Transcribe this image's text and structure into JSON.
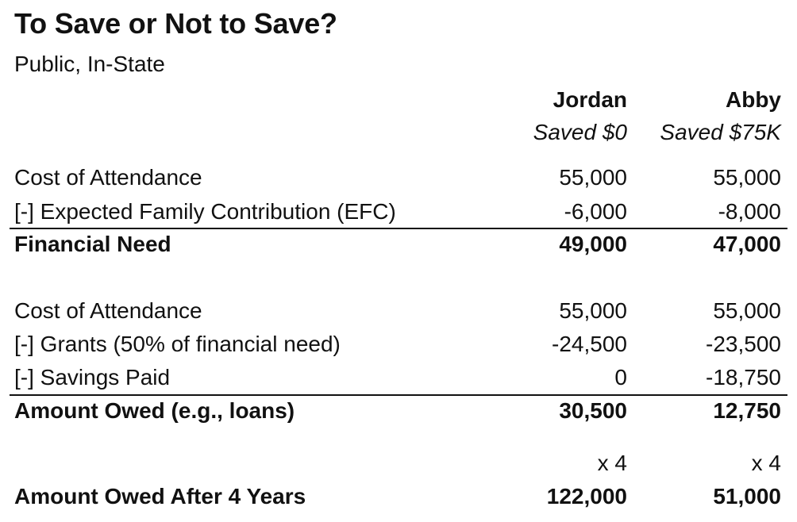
{
  "title": "To Save or Not to Save?",
  "subtitle": "Public, In-State",
  "columns": {
    "jordan": {
      "name": "Jordan",
      "note": "Saved $0"
    },
    "abby": {
      "name": "Abby",
      "note": "Saved $75K"
    }
  },
  "section1": {
    "rows": [
      {
        "label": "Cost of Attendance",
        "jordan": "55,000",
        "abby": "55,000"
      },
      {
        "label": "[-] Expected Family Contribution (EFC)",
        "jordan": "-6,000",
        "abby": "-8,000"
      }
    ],
    "total": {
      "label": "Financial Need",
      "jordan": "49,000",
      "abby": "47,000"
    }
  },
  "section2": {
    "rows": [
      {
        "label": "Cost of Attendance",
        "jordan": "55,000",
        "abby": "55,000"
      },
      {
        "label": "[-] Grants (50% of financial need)",
        "jordan": "-24,500",
        "abby": "-23,500"
      },
      {
        "label": "[-] Savings Paid",
        "jordan": "0",
        "abby": "-18,750"
      }
    ],
    "total": {
      "label": "Amount Owed (e.g., loans)",
      "jordan": "30,500",
      "abby": "12,750"
    }
  },
  "multiplier": {
    "jordan": "x 4",
    "abby": "x 4"
  },
  "final": {
    "label": "Amount Owed After 4 Years",
    "jordan": "122,000",
    "abby": "51,000"
  }
}
